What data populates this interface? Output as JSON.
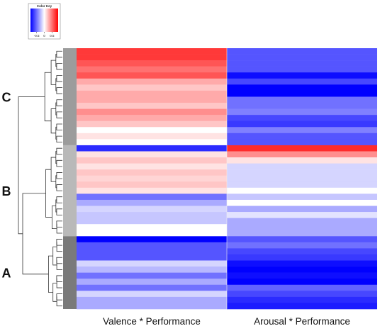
{
  "color_key": {
    "title": "Color Key",
    "ticks": [
      {
        "value": -0.5,
        "label": "-0.5"
      },
      {
        "value": 0,
        "label": "0"
      },
      {
        "value": 0.5,
        "label": "0.5"
      }
    ],
    "range": [
      -0.9,
      0.9
    ],
    "low_color": "#0000ff",
    "mid_color": "#ffffff",
    "high_color": "#ff0000"
  },
  "chart_data": {
    "type": "heatmap",
    "columns": [
      "Valence * Performance",
      "Arousal * Performance"
    ],
    "cluster_labels": [
      "C",
      "B",
      "A"
    ],
    "rows": [
      {
        "cluster": "C",
        "values": [
          0.7,
          -0.6
        ]
      },
      {
        "cluster": "C",
        "values": [
          0.7,
          -0.6
        ]
      },
      {
        "cluster": "C",
        "values": [
          0.6,
          -0.6
        ]
      },
      {
        "cluster": "C",
        "values": [
          0.5,
          -0.6
        ]
      },
      {
        "cluster": "C",
        "values": [
          0.6,
          -0.85
        ]
      },
      {
        "cluster": "C",
        "values": [
          0.3,
          -0.65
        ]
      },
      {
        "cluster": "C",
        "values": [
          0.2,
          -0.9
        ]
      },
      {
        "cluster": "C",
        "values": [
          0.3,
          -0.9
        ]
      },
      {
        "cluster": "C",
        "values": [
          0.3,
          -0.5
        ]
      },
      {
        "cluster": "C",
        "values": [
          0.2,
          -0.5
        ]
      },
      {
        "cluster": "C",
        "values": [
          0.4,
          -0.45
        ]
      },
      {
        "cluster": "C",
        "values": [
          0.3,
          -0.65
        ]
      },
      {
        "cluster": "C",
        "values": [
          0.2,
          -0.7
        ]
      },
      {
        "cluster": "C",
        "values": [
          0.0,
          -0.45
        ]
      },
      {
        "cluster": "C",
        "values": [
          0.1,
          -0.6
        ]
      },
      {
        "cluster": "C",
        "values": [
          0.0,
          -0.6
        ]
      },
      {
        "cluster": "B",
        "values": [
          -0.75,
          0.75
        ]
      },
      {
        "cluster": "B",
        "values": [
          0.1,
          0.4
        ]
      },
      {
        "cluster": "B",
        "values": [
          0.2,
          0.1
        ]
      },
      {
        "cluster": "B",
        "values": [
          0.1,
          -0.15
        ]
      },
      {
        "cluster": "B",
        "values": [
          0.2,
          -0.15
        ]
      },
      {
        "cluster": "B",
        "values": [
          0.15,
          -0.15
        ]
      },
      {
        "cluster": "B",
        "values": [
          0.2,
          -0.15
        ]
      },
      {
        "cluster": "B",
        "values": [
          0.1,
          0.0
        ]
      },
      {
        "cluster": "B",
        "values": [
          -0.5,
          -0.2
        ]
      },
      {
        "cluster": "B",
        "values": [
          -0.3,
          0.0
        ]
      },
      {
        "cluster": "B",
        "values": [
          -0.15,
          -0.3
        ]
      },
      {
        "cluster": "B",
        "values": [
          -0.2,
          -0.1
        ]
      },
      {
        "cluster": "B",
        "values": [
          -0.2,
          -0.3
        ]
      },
      {
        "cluster": "B",
        "values": [
          0.0,
          -0.3
        ]
      },
      {
        "cluster": "B",
        "values": [
          0.0,
          -0.3
        ]
      },
      {
        "cluster": "A",
        "values": [
          -0.9,
          -0.6
        ]
      },
      {
        "cluster": "A",
        "values": [
          -0.6,
          -0.5
        ]
      },
      {
        "cluster": "A",
        "values": [
          -0.6,
          -0.65
        ]
      },
      {
        "cluster": "A",
        "values": [
          -0.6,
          -0.7
        ]
      },
      {
        "cluster": "A",
        "values": [
          -0.15,
          -0.85
        ]
      },
      {
        "cluster": "A",
        "values": [
          -0.25,
          -0.95
        ]
      },
      {
        "cluster": "A",
        "values": [
          -0.5,
          -0.85
        ]
      },
      {
        "cluster": "A",
        "values": [
          -0.3,
          -0.9
        ]
      },
      {
        "cluster": "A",
        "values": [
          -0.5,
          -0.55
        ]
      },
      {
        "cluster": "A",
        "values": [
          -0.15,
          -0.65
        ]
      },
      {
        "cluster": "A",
        "values": [
          -0.3,
          -0.75
        ]
      },
      {
        "cluster": "A",
        "values": [
          -0.3,
          -0.8
        ]
      }
    ]
  }
}
